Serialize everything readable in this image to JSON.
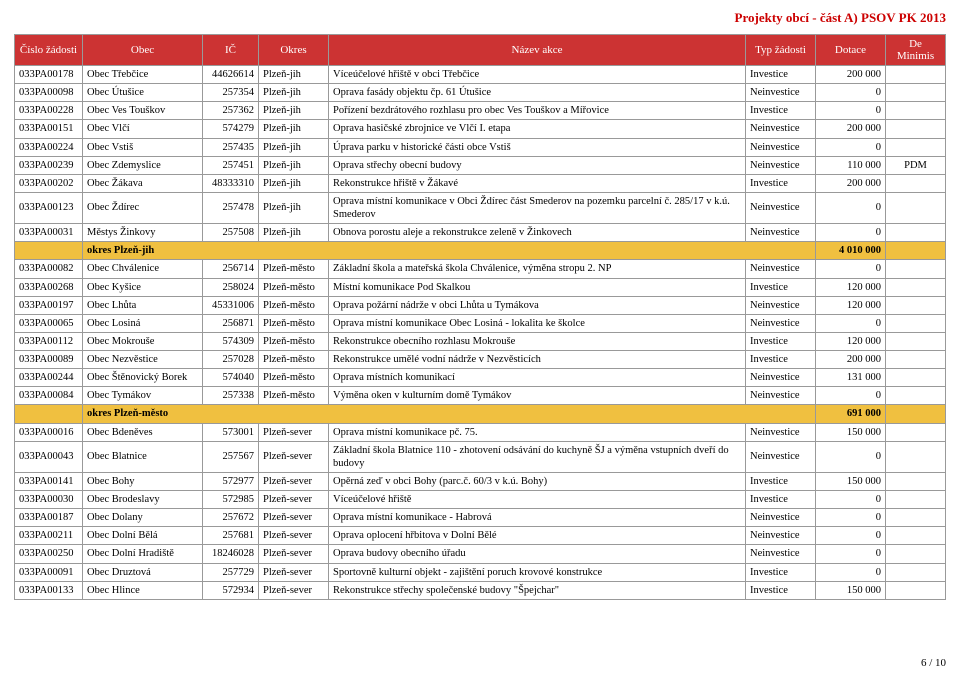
{
  "doc_title": "Projekty obcí - část A) PSOV PK 2013",
  "pager": "6 / 10",
  "columns": [
    "Číslo žádosti",
    "Obec",
    "IČ",
    "Okres",
    "Název akce",
    "Typ žádosti",
    "Dotace",
    "De Minimis"
  ],
  "subtotal_jih": {
    "label": "okres Plzeň-jih",
    "sum": "4 010 000"
  },
  "subtotal_mesto": {
    "label": "okres Plzeň-město",
    "sum": "691 000"
  },
  "rows_a": [
    {
      "id": "033PA00178",
      "obec": "Obec Třebčice",
      "ic": "44626614",
      "okres": "Plzeň-jih",
      "akce": "Víceúčelové hřiště v obci Třebčice",
      "typ": "Investice",
      "dot": "200 000",
      "dm": ""
    },
    {
      "id": "033PA00098",
      "obec": "Obec Útušice",
      "ic": "257354",
      "okres": "Plzeň-jih",
      "akce": "Oprava fasády objektu čp. 61 Útušice",
      "typ": "Neinvestice",
      "dot": "0",
      "dm": ""
    },
    {
      "id": "033PA00228",
      "obec": "Obec Ves Touškov",
      "ic": "257362",
      "okres": "Plzeň-jih",
      "akce": "Pořízení bezdrátového rozhlasu pro obec Ves Touškov a Mířovice",
      "typ": "Investice",
      "dot": "0",
      "dm": ""
    },
    {
      "id": "033PA00151",
      "obec": "Obec Vlčí",
      "ic": "574279",
      "okres": "Plzeň-jih",
      "akce": "Oprava hasičské zbrojnice ve Vlčí I. etapa",
      "typ": "Neinvestice",
      "dot": "200 000",
      "dm": ""
    },
    {
      "id": "033PA00224",
      "obec": "Obec Vstiš",
      "ic": "257435",
      "okres": "Plzeň-jih",
      "akce": "Úprava parku v historické části obce Vstiš",
      "typ": "Neinvestice",
      "dot": "0",
      "dm": ""
    },
    {
      "id": "033PA00239",
      "obec": "Obec Zdemyslice",
      "ic": "257451",
      "okres": "Plzeň-jih",
      "akce": "Oprava střechy obecní budovy",
      "typ": "Neinvestice",
      "dot": "110 000",
      "dm": "PDM"
    },
    {
      "id": "033PA00202",
      "obec": "Obec Žákava",
      "ic": "48333310",
      "okres": "Plzeň-jih",
      "akce": "Rekonstrukce hřiště v Žákavé",
      "typ": "Investice",
      "dot": "200 000",
      "dm": ""
    },
    {
      "id": "033PA00123",
      "obec": "Obec Ždírec",
      "ic": "257478",
      "okres": "Plzeň-jih",
      "akce": "Oprava místní komunikace v Obci Ždírec část Smederov na pozemku parcelní č. 285/17 v k.ú. Smederov",
      "typ": "Neinvestice",
      "dot": "0",
      "dm": ""
    },
    {
      "id": "033PA00031",
      "obec": "Městys Žinkovy",
      "ic": "257508",
      "okres": "Plzeň-jih",
      "akce": "Obnova porostu aleje a rekonstrukce zeleně v Žinkovech",
      "typ": "Neinvestice",
      "dot": "0",
      "dm": ""
    }
  ],
  "rows_b": [
    {
      "id": "033PA00082",
      "obec": "Obec Chválenice",
      "ic": "256714",
      "okres": "Plzeň-město",
      "akce": "Základní škola a mateřská škola Chválenice, výměna stropu 2. NP",
      "typ": "Neinvestice",
      "dot": "0",
      "dm": ""
    },
    {
      "id": "033PA00268",
      "obec": "Obec Kyšice",
      "ic": "258024",
      "okres": "Plzeň-město",
      "akce": "Místní komunikace Pod Skalkou",
      "typ": "Investice",
      "dot": "120 000",
      "dm": ""
    },
    {
      "id": "033PA00197",
      "obec": "Obec Lhůta",
      "ic": "45331006",
      "okres": "Plzeň-město",
      "akce": "Oprava požární nádrže v obci Lhůta u Tymákova",
      "typ": "Neinvestice",
      "dot": "120 000",
      "dm": ""
    },
    {
      "id": "033PA00065",
      "obec": "Obec Losiná",
      "ic": "256871",
      "okres": "Plzeň-město",
      "akce": "Oprava místní komunikace Obec Losiná - lokalita ke školce",
      "typ": "Neinvestice",
      "dot": "0",
      "dm": ""
    },
    {
      "id": "033PA00112",
      "obec": "Obec Mokrouše",
      "ic": "574309",
      "okres": "Plzeň-město",
      "akce": "Rekonstrukce obecního rozhlasu Mokrouše",
      "typ": "Investice",
      "dot": "120 000",
      "dm": ""
    },
    {
      "id": "033PA00089",
      "obec": "Obec Nezvěstice",
      "ic": "257028",
      "okres": "Plzeň-město",
      "akce": "Rekonstrukce umělé vodní nádrže v Nezvěsticích",
      "typ": "Investice",
      "dot": "200 000",
      "dm": ""
    },
    {
      "id": "033PA00244",
      "obec": "Obec Štěnovický Borek",
      "ic": "574040",
      "okres": "Plzeň-město",
      "akce": "Oprava místních komunikací",
      "typ": "Neinvestice",
      "dot": "131 000",
      "dm": ""
    },
    {
      "id": "033PA00084",
      "obec": "Obec Tymákov",
      "ic": "257338",
      "okres": "Plzeň-město",
      "akce": "Výměna oken v kulturním domě Tymákov",
      "typ": "Neinvestice",
      "dot": "0",
      "dm": ""
    }
  ],
  "rows_c": [
    {
      "id": "033PA00016",
      "obec": "Obec Bdeněves",
      "ic": "573001",
      "okres": "Plzeň-sever",
      "akce": "Oprava místní komunikace pč. 75.",
      "typ": "Neinvestice",
      "dot": "150 000",
      "dm": ""
    },
    {
      "id": "033PA00043",
      "obec": "Obec Blatnice",
      "ic": "257567",
      "okres": "Plzeň-sever",
      "akce": "Základní škola Blatnice 110 - zhotovení odsávání do kuchyně ŠJ a výměna vstupních dveří do budovy",
      "typ": "Neinvestice",
      "dot": "0",
      "dm": ""
    },
    {
      "id": "033PA00141",
      "obec": "Obec Bohy",
      "ic": "572977",
      "okres": "Plzeň-sever",
      "akce": "Opěrná zeď v obci Bohy (parc.č. 60/3 v k.ú. Bohy)",
      "typ": "Investice",
      "dot": "150 000",
      "dm": ""
    },
    {
      "id": "033PA00030",
      "obec": "Obec Brodeslavy",
      "ic": "572985",
      "okres": "Plzeň-sever",
      "akce": "Víceúčelové hřiště",
      "typ": "Investice",
      "dot": "0",
      "dm": ""
    },
    {
      "id": "033PA00187",
      "obec": "Obec Dolany",
      "ic": "257672",
      "okres": "Plzeň-sever",
      "akce": "Oprava místní komunikace - Habrová",
      "typ": "Neinvestice",
      "dot": "0",
      "dm": ""
    },
    {
      "id": "033PA00211",
      "obec": "Obec Dolní Bělá",
      "ic": "257681",
      "okres": "Plzeň-sever",
      "akce": "Oprava oplocení hřbitova v Dolní Bělé",
      "typ": "Neinvestice",
      "dot": "0",
      "dm": ""
    },
    {
      "id": "033PA00250",
      "obec": "Obec Dolní Hradiště",
      "ic": "18246028",
      "okres": "Plzeň-sever",
      "akce": "Oprava budovy obecního úřadu",
      "typ": "Neinvestice",
      "dot": "0",
      "dm": ""
    },
    {
      "id": "033PA00091",
      "obec": "Obec Druztová",
      "ic": "257729",
      "okres": "Plzeň-sever",
      "akce": "Sportovně kulturní objekt - zajištění poruch krovové konstrukce",
      "typ": "Investice",
      "dot": "0",
      "dm": ""
    },
    {
      "id": "033PA00133",
      "obec": "Obec Hlince",
      "ic": "572934",
      "okres": "Plzeň-sever",
      "akce": "Rekonstrukce střechy společenské budovy \"Špejchar\"",
      "typ": "Investice",
      "dot": "150 000",
      "dm": ""
    }
  ]
}
